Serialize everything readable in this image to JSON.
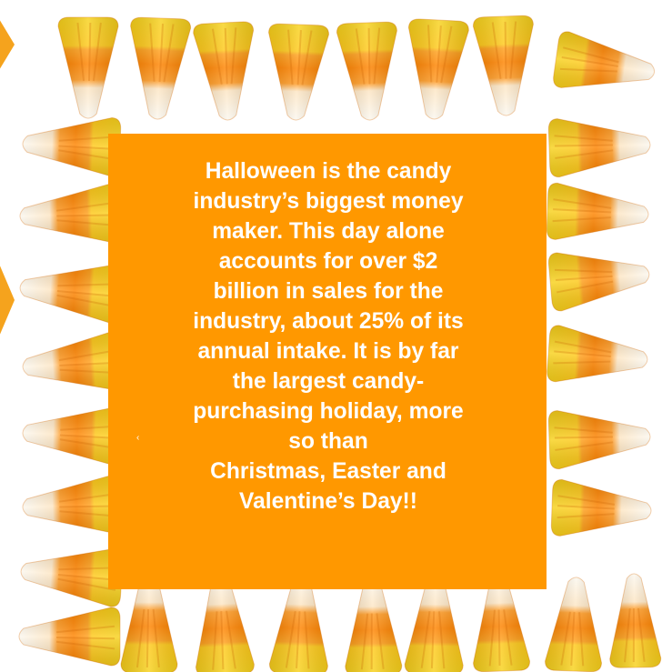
{
  "message": "Halloween is the candy\nindustry’s biggest money\nmaker. This day alone\naccounts for over $2\nbillion in sales for the\nindustry, about 25% of its\nannual intake. It is by far\nthe largest candy-\npurchasing holiday, more\nso than\nChristmas, Easter and\nValentine’s Day!!",
  "decoration": {
    "border_icon": "candy-corn-icon",
    "candy_colors": {
      "yellow": "#f7d21c",
      "orange": "#ff8a00",
      "white": "#fbf7ee",
      "shadow": "#d96a00"
    },
    "panel_color": "#ff9800",
    "edge_tab_color": "#f5a31d"
  }
}
